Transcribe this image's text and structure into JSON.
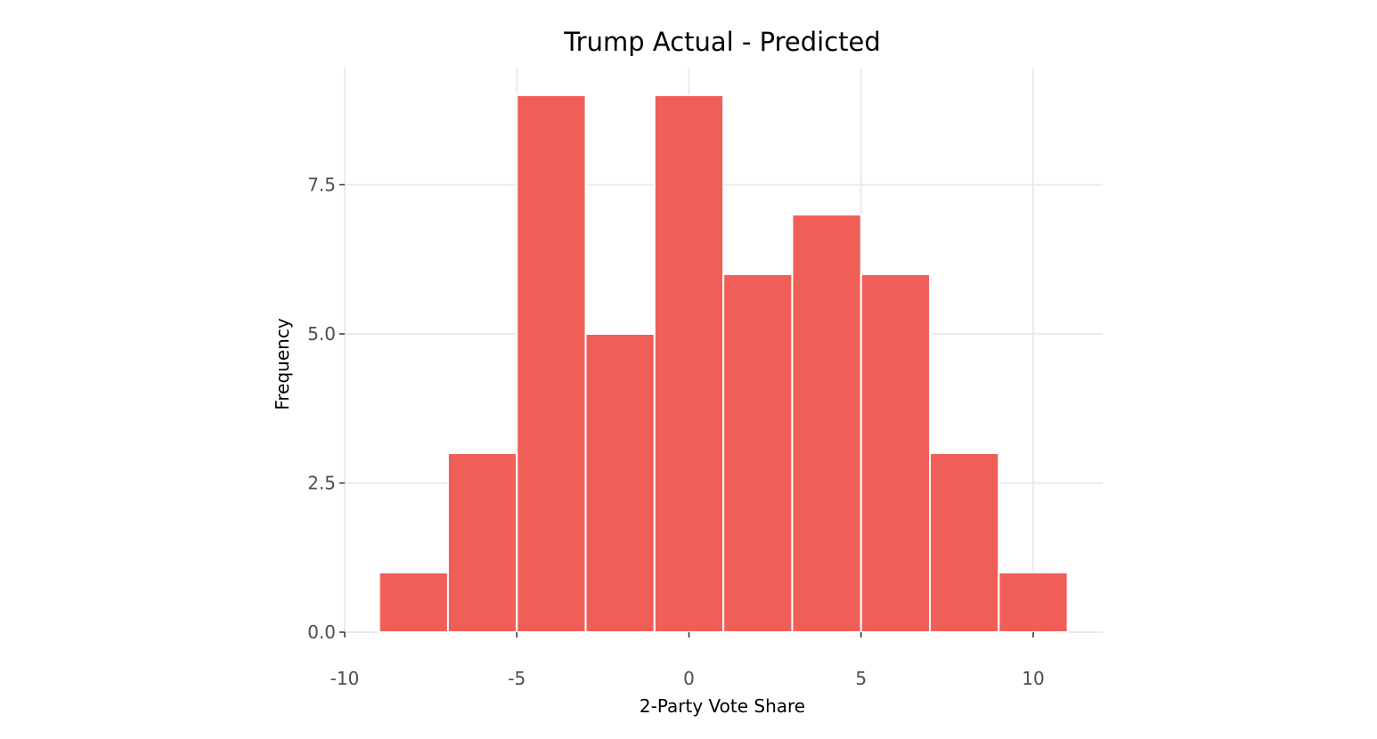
{
  "chart_data": {
    "type": "bar",
    "subtype": "histogram",
    "title": "Trump Actual - Predicted",
    "xlabel": "2-Party Vote Share",
    "ylabel": "Frequency",
    "xlim": [
      -10,
      12.2
    ],
    "ylim": [
      0,
      9.5
    ],
    "x_ticks": [
      -10,
      -5,
      0,
      5,
      10
    ],
    "x_tick_labels": [
      "-10",
      "-5",
      "0",
      "5",
      "10"
    ],
    "y_ticks": [
      0,
      2.5,
      5,
      7.5
    ],
    "y_tick_labels": [
      "0.0",
      "2.5",
      "5.0",
      "7.5"
    ],
    "bin_width": 2,
    "bins": [
      {
        "x_start": -9,
        "x_end": -7,
        "count": 1
      },
      {
        "x_start": -7,
        "x_end": -5,
        "count": 3
      },
      {
        "x_start": -5,
        "x_end": -3,
        "count": 9
      },
      {
        "x_start": -3,
        "x_end": -1,
        "count": 5
      },
      {
        "x_start": -1,
        "x_end": 1,
        "count": 9
      },
      {
        "x_start": 1,
        "x_end": 3,
        "count": 6
      },
      {
        "x_start": 3,
        "x_end": 5,
        "count": 7
      },
      {
        "x_start": 5,
        "x_end": 7,
        "count": 6
      },
      {
        "x_start": 7,
        "x_end": 9,
        "count": 3
      },
      {
        "x_start": 9,
        "x_end": 11,
        "count": 1
      }
    ],
    "grid": true,
    "legend": "none",
    "bar_color": "#ef5f58",
    "bar_outline_color": "#ffffff",
    "grid_color": "#ebebeb",
    "background_color": "#ffffff"
  }
}
